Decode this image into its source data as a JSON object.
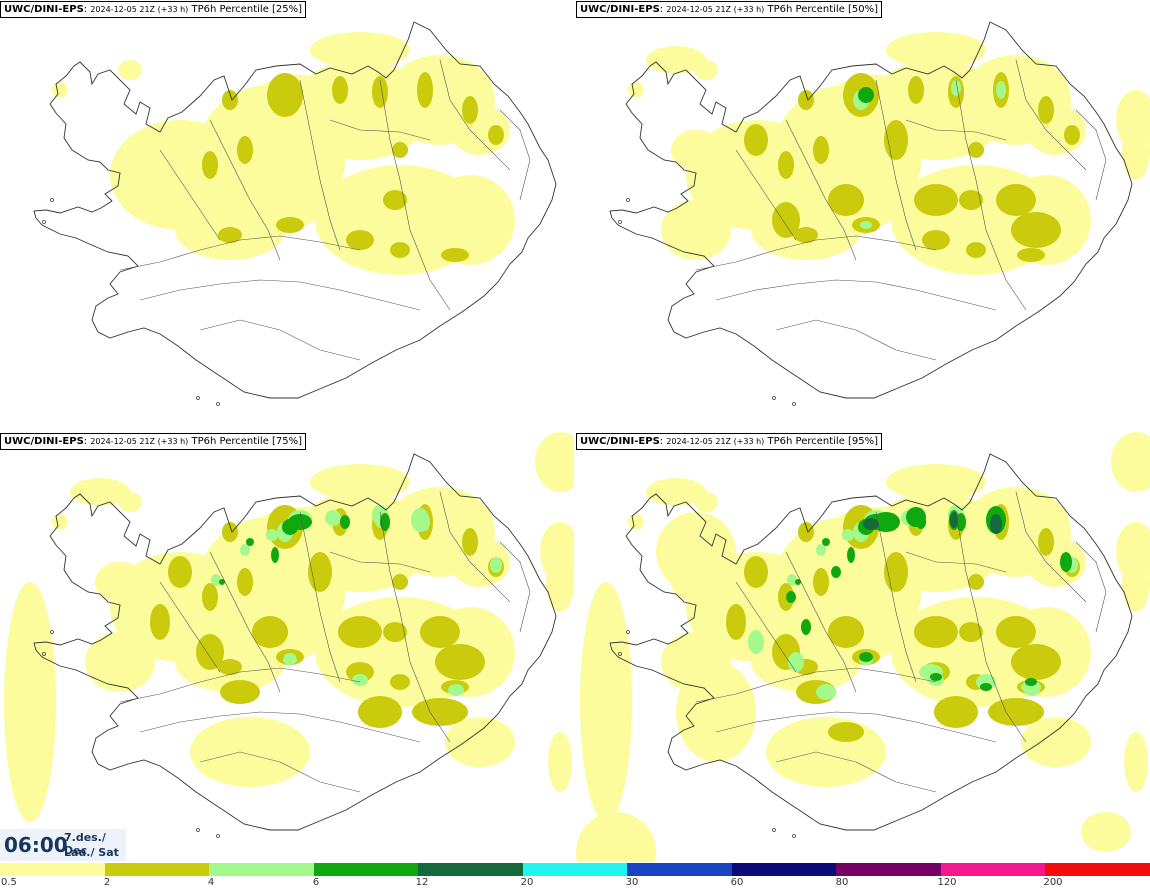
{
  "panels": [
    {
      "model": "UWC/DINI-EPS",
      "run": "2024-12-05 21Z (+33 h)",
      "field": "TP6h Percentile [25%]",
      "level": 1
    },
    {
      "model": "UWC/DINI-EPS",
      "run": "2024-12-05 21Z (+33 h)",
      "field": "TP6h Percentile [50%]",
      "level": 2
    },
    {
      "model": "UWC/DINI-EPS",
      "run": "2024-12-05 21Z (+33 h)",
      "field": "TP6h Percentile [75%]",
      "level": 3
    },
    {
      "model": "UWC/DINI-EPS",
      "run": "2024-12-05 21Z (+33 h)",
      "field": "TP6h Percentile [95%]",
      "level": 4
    }
  ],
  "valid_time": {
    "time": "06:00",
    "date_line1": "7.des./ Dec",
    "date_line2": "Lau./ Sat"
  },
  "legend": {
    "colors": [
      "#fcfc9c",
      "#c9cb0c",
      "#a3f98c",
      "#0fa80f",
      "#146a3c",
      "#22f5f0",
      "#1944c4",
      "#0a0a78",
      "#770064",
      "#f3198a",
      "#f20c0c"
    ],
    "ticks": [
      "0.5",
      "2",
      "4",
      "6",
      "12",
      "20",
      "30",
      "60",
      "80",
      "120",
      "200"
    ]
  }
}
